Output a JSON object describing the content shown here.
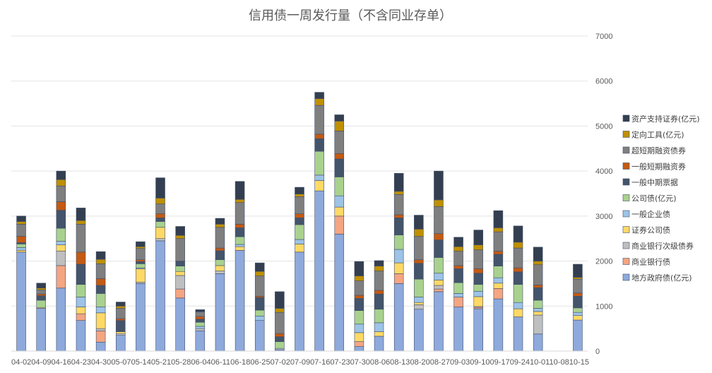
{
  "chart_data": {
    "type": "bar",
    "stacked": true,
    "title": "信用债一周发行量（不含同业存单）",
    "ylim": [
      0,
      7000
    ],
    "yticks": [
      0,
      1000,
      2000,
      3000,
      4000,
      5000,
      6000,
      7000
    ],
    "y_axis_position": "right",
    "grid": true,
    "legend_position": "right",
    "x_tick_labels_text": "04-0204-0904-1604-2304-3005-0705-1405-2105-2806-0406-1106-1806-2507-0207-0907-1607-2307-3008-0608-1308-2008-2709-0309-1009-1709-2410-0110-0810-15",
    "categories": [
      "04-02",
      "04-09",
      "04-16",
      "04-23",
      "04-30",
      "05-07",
      "05-14",
      "05-21",
      "05-28",
      "06-04",
      "06-11",
      "06-18",
      "06-25",
      "07-02",
      "07-09",
      "07-16",
      "07-23",
      "07-30",
      "08-06",
      "08-13",
      "08-20",
      "08-27",
      "09-03",
      "09-10",
      "09-17",
      "09-24",
      "10-01",
      "10-08",
      "10-15"
    ],
    "series": [
      {
        "name": "地方政府债(亿元)",
        "color": "#8ea9db",
        "values": [
          2200,
          950,
          1400,
          680,
          200,
          350,
          1500,
          2450,
          1180,
          450,
          1720,
          2240,
          680,
          30,
          2200,
          3560,
          2600,
          100,
          330,
          1500,
          930,
          1320,
          980,
          940,
          1160,
          760,
          380,
          0,
          690
        ]
      },
      {
        "name": "商业银行债",
        "color": "#f4a582",
        "values": [
          0,
          0,
          500,
          150,
          250,
          0,
          0,
          0,
          200,
          0,
          0,
          0,
          0,
          0,
          0,
          0,
          400,
          110,
          0,
          220,
          0,
          60,
          220,
          30,
          230,
          0,
          0,
          0,
          0
        ]
      },
      {
        "name": "商业银行次级债券",
        "color": "#bfbfbf",
        "values": [
          0,
          0,
          320,
          0,
          50,
          40,
          30,
          50,
          300,
          50,
          60,
          0,
          0,
          30,
          0,
          0,
          0,
          0,
          0,
          0,
          100,
          80,
          0,
          20,
          0,
          0,
          420,
          0,
          0
        ]
      },
      {
        "name": "证券公司债",
        "color": "#ffd966",
        "values": [
          40,
          20,
          140,
          150,
          350,
          40,
          300,
          250,
          90,
          0,
          120,
          80,
          0,
          0,
          180,
          230,
          200,
          200,
          100,
          240,
          50,
          120,
          0,
          220,
          120,
          180,
          80,
          0,
          100
        ]
      },
      {
        "name": "一般企业债",
        "color": "#9dc3e6",
        "values": [
          60,
          0,
          80,
          220,
          130,
          0,
          20,
          0,
          0,
          50,
          0,
          50,
          100,
          0,
          100,
          120,
          250,
          190,
          200,
          300,
          120,
          150,
          80,
          120,
          120,
          140,
          70,
          0,
          70
        ]
      },
      {
        "name": "公司债(亿元)",
        "color": "#a9d18e",
        "values": [
          80,
          160,
          290,
          280,
          300,
          0,
          90,
          130,
          120,
          90,
          130,
          170,
          130,
          150,
          330,
          530,
          420,
          300,
          300,
          320,
          400,
          350,
          240,
          150,
          260,
          400,
          180,
          0,
          100
        ]
      },
      {
        "name": "一般中期票据",
        "color": "#44546a",
        "values": [
          30,
          100,
          400,
          450,
          180,
          250,
          50,
          80,
          100,
          70,
          200,
          200,
          280,
          110,
          150,
          280,
          400,
          270,
          340,
          380,
          350,
          390,
          310,
          250,
          260,
          280,
          280,
          0,
          260
        ]
      },
      {
        "name": "一般短期融资券",
        "color": "#c55a11",
        "values": [
          140,
          40,
          190,
          270,
          150,
          40,
          40,
          90,
          10,
          60,
          60,
          80,
          30,
          70,
          90,
          100,
          120,
          70,
          80,
          70,
          80,
          140,
          70,
          100,
          70,
          90,
          60,
          0,
          70
        ]
      },
      {
        "name": "超短期融资债券",
        "color": "#7f7f7f",
        "values": [
          270,
          90,
          350,
          620,
          330,
          230,
          250,
          220,
          500,
          100,
          460,
          480,
          450,
          470,
          380,
          640,
          500,
          320,
          430,
          450,
          520,
          600,
          320,
          420,
          430,
          440,
          450,
          0,
          310
        ]
      },
      {
        "name": "定向工具(亿元)",
        "color": "#bf9000",
        "values": [
          60,
          40,
          140,
          80,
          100,
          50,
          40,
          130,
          70,
          10,
          70,
          70,
          100,
          90,
          60,
          150,
          220,
          110,
          110,
          70,
          160,
          150,
          100,
          110,
          90,
          130,
          80,
          0,
          40
        ]
      },
      {
        "name": "资产支持证券(亿元)",
        "color": "#333f50",
        "values": [
          120,
          110,
          190,
          280,
          170,
          90,
          110,
          450,
          200,
          40,
          130,
          400,
          190,
          370,
          150,
          140,
          140,
          320,
          120,
          400,
          310,
          640,
          210,
          330,
          380,
          360,
          310,
          0,
          290
        ]
      }
    ]
  }
}
